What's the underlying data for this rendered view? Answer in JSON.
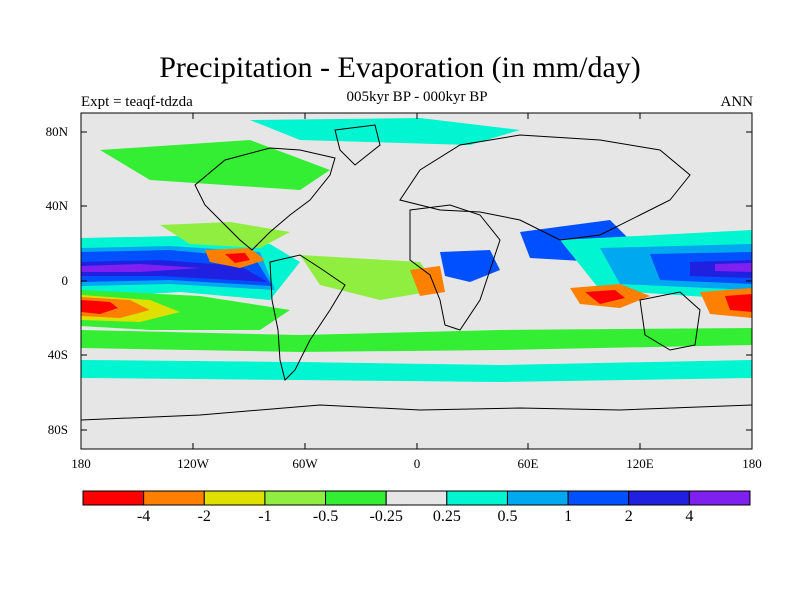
{
  "title": "Precipitation - Evaporation (in mm/day)",
  "subtitle": "005kyr BP - 000kyr BP",
  "left_label": "Expt = teaqf-tdzda",
  "right_label": "ANN",
  "lat_ticks": [
    "80N",
    "40N",
    "0",
    "40S",
    "80S"
  ],
  "lon_ticks": [
    "180",
    "120W",
    "60W",
    "0",
    "60E",
    "120E",
    "180"
  ],
  "colorbar": {
    "labels": [
      "-4",
      "-2",
      "-1",
      "-0.5",
      "-0.25",
      "0.25",
      "0.5",
      "1",
      "2",
      "4"
    ],
    "colors": [
      "#ff0000",
      "#ff8000",
      "#e0e000",
      "#90ee40",
      "#33ee33",
      "#e6e6e6",
      "#00f5d0",
      "#00a8f0",
      "#0050ff",
      "#2020e0",
      "#8020f0"
    ]
  },
  "map": {
    "background_color": "#e6e6e6",
    "grid_lines": false
  }
}
